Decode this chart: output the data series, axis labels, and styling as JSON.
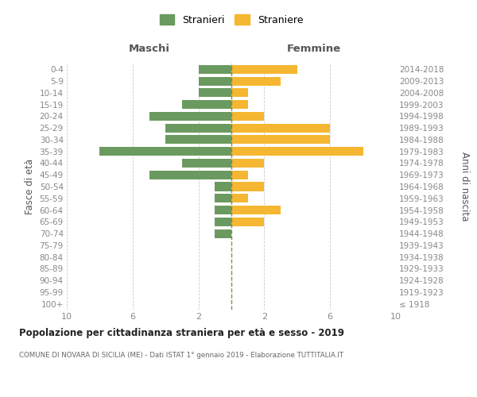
{
  "age_groups": [
    "100+",
    "95-99",
    "90-94",
    "85-89",
    "80-84",
    "75-79",
    "70-74",
    "65-69",
    "60-64",
    "55-59",
    "50-54",
    "45-49",
    "40-44",
    "35-39",
    "30-34",
    "25-29",
    "20-24",
    "15-19",
    "10-14",
    "5-9",
    "0-4"
  ],
  "birth_years": [
    "≤ 1918",
    "1919-1923",
    "1924-1928",
    "1929-1933",
    "1934-1938",
    "1939-1943",
    "1944-1948",
    "1949-1953",
    "1954-1958",
    "1959-1963",
    "1964-1968",
    "1969-1973",
    "1974-1978",
    "1979-1983",
    "1984-1988",
    "1989-1993",
    "1994-1998",
    "1999-2003",
    "2004-2008",
    "2009-2013",
    "2014-2018"
  ],
  "maschi": [
    0,
    0,
    0,
    0,
    0,
    0,
    1,
    1,
    1,
    1,
    1,
    5,
    3,
    8,
    4,
    4,
    5,
    3,
    2,
    2,
    2
  ],
  "femmine": [
    0,
    0,
    0,
    0,
    0,
    0,
    0,
    2,
    3,
    1,
    2,
    1,
    2,
    8,
    6,
    6,
    2,
    1,
    1,
    3,
    4
  ],
  "color_maschi": "#6a9a5f",
  "color_femmine": "#f5b731",
  "title": "Popolazione per cittadinanza straniera per età e sesso - 2019",
  "subtitle": "COMUNE DI NOVARA DI SICILIA (ME) - Dati ISTAT 1° gennaio 2019 - Elaborazione TUTTITALIA.IT",
  "ylabel_left": "Fasce di età",
  "ylabel_right": "Anni di nascita",
  "label_maschi": "Maschi",
  "label_femmine": "Femmine",
  "legend_maschi": "Stranieri",
  "legend_femmine": "Straniere",
  "xlim": 10,
  "background_color": "#ffffff",
  "grid_color": "#cccccc",
  "centerline_color": "#808040",
  "tick_label_color": "#888888",
  "header_color": "#555555",
  "title_color": "#222222",
  "subtitle_color": "#666666"
}
